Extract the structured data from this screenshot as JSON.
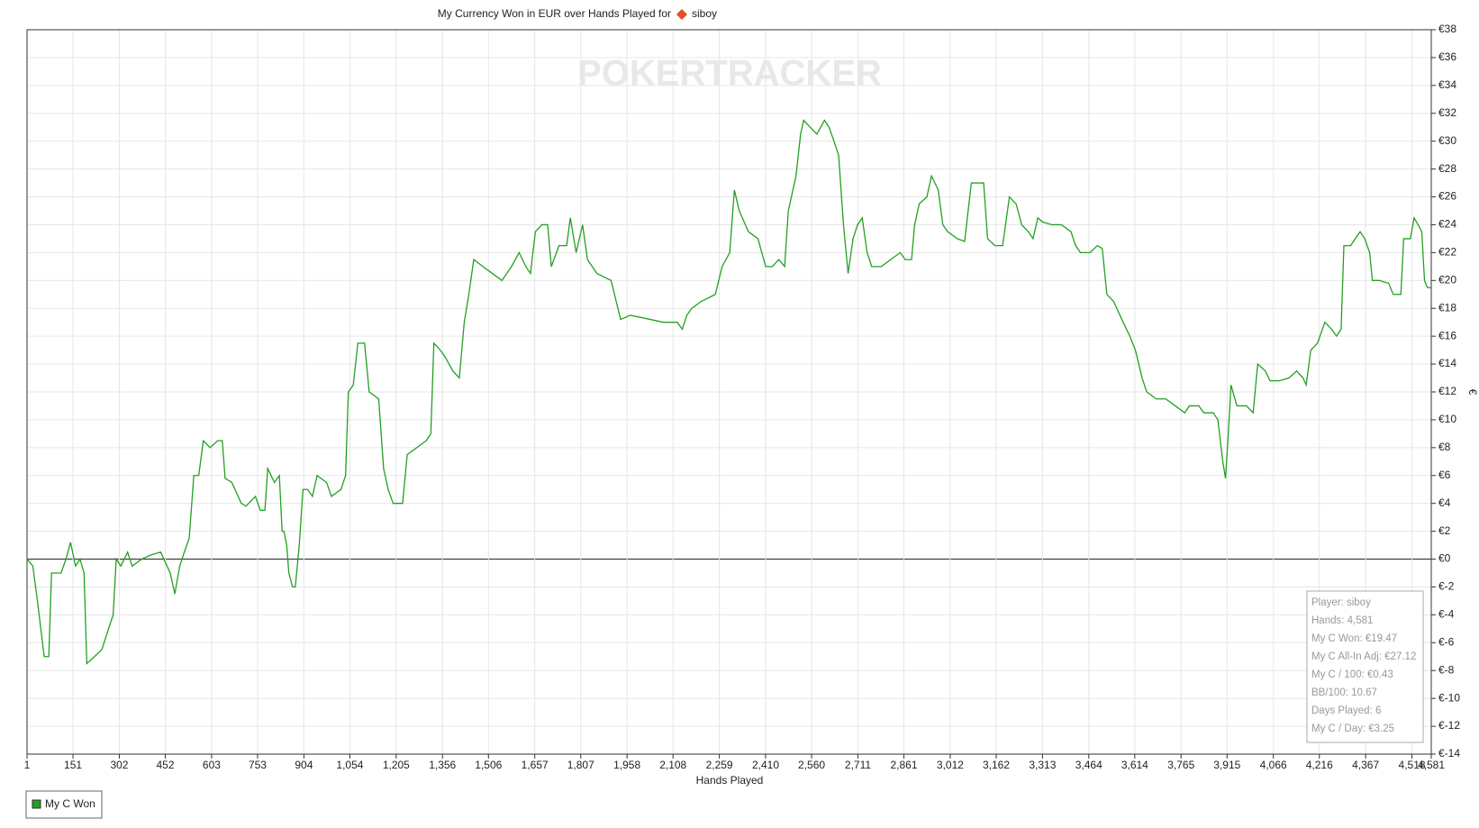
{
  "chart_data": {
    "type": "line",
    "title": "My Currency Won in EUR over Hands Played for",
    "player": "siboy",
    "watermark": "POKERTRACKER",
    "x_label": "Hands Played",
    "y_label": "€",
    "xlim": [
      1,
      4581
    ],
    "ylim": [
      -14,
      38
    ],
    "xticks": [
      1,
      151,
      302,
      452,
      603,
      753,
      904,
      {
        "value": 1054,
        "label": "1,054"
      },
      {
        "value": 1205,
        "label": "1,205"
      },
      {
        "value": 1356,
        "label": "1,356"
      },
      {
        "value": 1506,
        "label": "1,506"
      },
      {
        "value": 1657,
        "label": "1,657"
      },
      {
        "value": 1807,
        "label": "1,807"
      },
      {
        "value": 1958,
        "label": "1,958"
      },
      {
        "value": 2108,
        "label": "2,108"
      },
      {
        "value": 2259,
        "label": "2,259"
      },
      {
        "value": 2410,
        "label": "2,410"
      },
      {
        "value": 2560,
        "label": "2,560"
      },
      {
        "value": 2711,
        "label": "2,711"
      },
      {
        "value": 2861,
        "label": "2,861"
      },
      {
        "value": 3012,
        "label": "3,012"
      },
      {
        "value": 3162,
        "label": "3,162"
      },
      {
        "value": 3313,
        "label": "3,313"
      },
      {
        "value": 3464,
        "label": "3,464"
      },
      {
        "value": 3614,
        "label": "3,614"
      },
      {
        "value": 3765,
        "label": "3,765"
      },
      {
        "value": 3915,
        "label": "3,915"
      },
      {
        "value": 4066,
        "label": "4,066"
      },
      {
        "value": 4216,
        "label": "4,216"
      },
      {
        "value": 4367,
        "label": "4,367"
      },
      {
        "value": 4518,
        "label": "4,518"
      },
      {
        "value": 4581,
        "label": "4,581"
      }
    ],
    "yticks": [
      {
        "value": -14,
        "label": "€-14"
      },
      {
        "value": -12,
        "label": "€-12"
      },
      {
        "value": -10,
        "label": "€-10"
      },
      {
        "value": -8,
        "label": "€-8"
      },
      {
        "value": -6,
        "label": "€-6"
      },
      {
        "value": -4,
        "label": "€-4"
      },
      {
        "value": -2,
        "label": "€-2"
      },
      {
        "value": 0,
        "label": "€0"
      },
      {
        "value": 2,
        "label": "€2"
      },
      {
        "value": 4,
        "label": "€4"
      },
      {
        "value": 6,
        "label": "€6"
      },
      {
        "value": 8,
        "label": "€8"
      },
      {
        "value": 10,
        "label": "€10"
      },
      {
        "value": 12,
        "label": "€12"
      },
      {
        "value": 14,
        "label": "€14"
      },
      {
        "value": 16,
        "label": "€16"
      },
      {
        "value": 18,
        "label": "€18"
      },
      {
        "value": 20,
        "label": "€20"
      },
      {
        "value": 22,
        "label": "€22"
      },
      {
        "value": 24,
        "label": "€24"
      },
      {
        "value": 26,
        "label": "€26"
      },
      {
        "value": 28,
        "label": "€28"
      },
      {
        "value": 30,
        "label": "€30"
      },
      {
        "value": 32,
        "label": "€32"
      },
      {
        "value": 34,
        "label": "€34"
      },
      {
        "value": 36,
        "label": "€36"
      },
      {
        "value": 38,
        "label": "€38"
      }
    ],
    "grid": true,
    "x": [
      1,
      20,
      35,
      57,
      72,
      81,
      112,
      128,
      143,
      159,
      174,
      187,
      196,
      221,
      245,
      267,
      282,
      292,
      307,
      329,
      344,
      375,
      406,
      437,
      468,
      483,
      499,
      514,
      530,
      545,
      561,
      576,
      598,
      623,
      638,
      647,
      669,
      700,
      715,
      746,
      762,
      777,
      786,
      808,
      824,
      833,
      839,
      848,
      855,
      867,
      876,
      889,
      901,
      916,
      932,
      947,
      978,
      994,
      1025,
      1040,
      1049,
      1065,
      1080,
      1102,
      1117,
      1148,
      1164,
      1179,
      1195,
      1226,
      1241,
      1272,
      1303,
      1318,
      1328,
      1349,
      1365,
      1390,
      1411,
      1427,
      1442,
      1458,
      1488,
      1519,
      1550,
      1581,
      1606,
      1628,
      1643,
      1659,
      1680,
      1699,
      1711,
      1736,
      1761,
      1773,
      1792,
      1813,
      1829,
      1860,
      1906,
      1937,
      1968,
      2014,
      2076,
      2122,
      2138,
      2153,
      2169,
      2200,
      2246,
      2268,
      2293,
      2308,
      2324,
      2354,
      2385,
      2410,
      2432,
      2453,
      2472,
      2484,
      2509,
      2524,
      2534,
      2555,
      2577,
      2602,
      2617,
      2633,
      2648,
      2664,
      2679,
      2695,
      2710,
      2725,
      2741,
      2756,
      2787,
      2818,
      2849,
      2865,
      2886,
      2896,
      2911,
      2936,
      2951,
      2973,
      2988,
      3004,
      3035,
      3059,
      3081,
      3097,
      3121,
      3134,
      3158,
      3183,
      3205,
      3227,
      3245,
      3267,
      3282,
      3298,
      3313,
      3344,
      3375,
      3406,
      3421,
      3437,
      3468,
      3492,
      3508,
      3523,
      3545,
      3576,
      3598,
      3616,
      3638,
      3653,
      3684,
      3715,
      3746,
      3777,
      3792,
      3823,
      3839,
      3870,
      3885,
      3901,
      3910,
      3919,
      3928,
      3947,
      3978,
      4000,
      4015,
      4040,
      4055,
      4086,
      4117,
      4142,
      4163,
      4173,
      4188,
      4210,
      4234,
      4256,
      4272,
      4287,
      4296,
      4318,
      4333,
      4349,
      4364,
      4380,
      4389,
      4411,
      4442,
      4457,
      4482,
      4491,
      4513,
      4525,
      4538,
      4550,
      4559,
      4568,
      4581
    ],
    "series": [
      {
        "name": "My C Won",
        "color": "#22a022",
        "values": [
          0,
          -0.5,
          -3,
          -7,
          -7,
          -1,
          -1,
          0,
          1.2,
          -0.5,
          0,
          -1,
          -7.5,
          -7,
          -6.5,
          -5,
          -4,
          0,
          -0.5,
          0.5,
          -0.5,
          0,
          0.3,
          0.5,
          -1,
          -2.5,
          -0.5,
          0.5,
          1.5,
          6,
          6,
          8.5,
          8,
          8.5,
          8.5,
          5.8,
          5.5,
          4,
          3.8,
          4.5,
          3.5,
          3.5,
          6.5,
          5.5,
          6,
          2,
          2,
          1,
          -1,
          -2,
          -2,
          1,
          5,
          5,
          4.5,
          6,
          5.5,
          4.5,
          5,
          6,
          12,
          12.5,
          15.5,
          15.5,
          12,
          11.5,
          6.5,
          5,
          4,
          4,
          7.5,
          8,
          8.5,
          9,
          15.5,
          15,
          14.5,
          13.5,
          13,
          17,
          19,
          21.5,
          21,
          20.5,
          20,
          21,
          22,
          21,
          20.5,
          23.5,
          24,
          24,
          21,
          22.5,
          22.5,
          24.5,
          22,
          24,
          21.5,
          20.5,
          20,
          17.2,
          17.5,
          17.3,
          17,
          17,
          16.5,
          17.5,
          18,
          18.5,
          19,
          21,
          22,
          26.5,
          25,
          23.5,
          23,
          21,
          21,
          21.5,
          21,
          25,
          27.5,
          30.5,
          31.5,
          31,
          30.5,
          31.5,
          31,
          30,
          29,
          24,
          20.5,
          23,
          24,
          24.5,
          22,
          21,
          21,
          21.5,
          22,
          21.5,
          21.5,
          24,
          25.5,
          26,
          27.5,
          26.5,
          24,
          23.5,
          23,
          22.8,
          27,
          27,
          27,
          23,
          22.5,
          22.5,
          26,
          25.5,
          24,
          23.5,
          23,
          24.5,
          24.2,
          24,
          24,
          23.5,
          22.5,
          22,
          22,
          22.5,
          22.3,
          19,
          18.5,
          17,
          16,
          15,
          13,
          12,
          11.5,
          11.5,
          11,
          10.5,
          11,
          11,
          10.5,
          10.5,
          10,
          7,
          5.8,
          9,
          12.5,
          11,
          11,
          10.5,
          14,
          13.5,
          12.8,
          12.8,
          13,
          13.5,
          13,
          12.5,
          15,
          15.5,
          17,
          16.5,
          16,
          16.5,
          22.5,
          22.5,
          23,
          23.5,
          23,
          22,
          20,
          20,
          19.8,
          19,
          19,
          23,
          23,
          24.5,
          24,
          23.5,
          20,
          19.5,
          19.47
        ]
      }
    ],
    "stats": [
      "Player: siboy",
      "Hands: 4,581",
      "My C Won: €19.47",
      "My C All-In Adj: €27.12",
      "My C / 100: €0.43",
      "BB/100: 10.67",
      "Days Played: 6",
      "My C / Day: €3.25"
    ]
  }
}
